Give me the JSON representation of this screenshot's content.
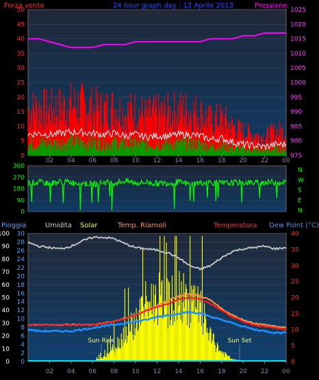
{
  "header": {
    "left_label": "Forza vento",
    "center_title": "24 hour graph day : 12 Aprile 2013",
    "right_label": "Pressione"
  },
  "panel1": {
    "left_ticks": [
      "0",
      "5",
      "10",
      "15",
      "20",
      "25",
      "30",
      "35",
      "40",
      "45",
      "50"
    ],
    "right_ticks": [
      "975",
      "980",
      "985",
      "990",
      "995",
      "1000",
      "1005",
      "1010",
      "1015",
      "1020",
      "1025"
    ]
  },
  "panel2": {
    "left_ticks": [
      "0",
      "90",
      "180",
      "270",
      "360"
    ],
    "compass": [
      "N",
      "W",
      "S",
      "E",
      "N"
    ]
  },
  "panel3": {
    "header_labels": {
      "pioggia": "Pioggia",
      "umidita": "Umidita",
      "solar": "Solar",
      "temp_riarnoli": "Temp. Riarnoli",
      "temperatura": "Temperatura",
      "dew_point": "Dew Point (°C)"
    },
    "far_left_ticks": [
      "0",
      "10",
      "20",
      "30",
      "40",
      "50",
      "60",
      "70",
      "80",
      "90",
      "100"
    ],
    "left_ticks": [
      "0",
      "2",
      "4",
      "6",
      "8",
      "10",
      "12",
      "14",
      "16",
      "18",
      "20",
      "22",
      "24",
      "26",
      "28",
      "30"
    ],
    "right_ticks": [
      "0",
      "5",
      "10",
      "15",
      "20",
      "25",
      "30",
      "35",
      "40"
    ],
    "sun_rise": "Sun Rise",
    "sun_set": "Sun Set"
  },
  "x_ticks": [
    "02",
    "04",
    "06",
    "08",
    "10",
    "12",
    "14",
    "16",
    "18",
    "20",
    "22",
    "00"
  ],
  "colors": {
    "wind_gust": "#ff0000",
    "wind_avg": "#ffffff",
    "wind_speed": "#00a000",
    "pressure": "#ff00ff",
    "direction": "#00ff00",
    "humidity": "#c0c0c0",
    "solar": "#ffff00",
    "temperature": "#ff2020",
    "temp_riarnoli": "#ff8c40",
    "dew_point": "#1e90ff"
  },
  "chart_data": [
    {
      "type": "line",
      "x": [
        0,
        1,
        2,
        3,
        4,
        5,
        6,
        7,
        8,
        9,
        10,
        11,
        12,
        13,
        14,
        15,
        16,
        17,
        18,
        19,
        20,
        21,
        22,
        23,
        24
      ],
      "series": [
        {
          "name": "Forza vento",
          "values": [
            17,
            18,
            17,
            18,
            19,
            19,
            18,
            17,
            18,
            16,
            17,
            15,
            16,
            16,
            17,
            17,
            16,
            13,
            14,
            11,
            9,
            8,
            7,
            9,
            9
          ]
        },
        {
          "name": "Pressione",
          "values": [
            1015,
            1015,
            1014,
            1013,
            1012,
            1012,
            1012,
            1013,
            1013,
            1013,
            1014,
            1014,
            1014,
            1014,
            1014,
            1014,
            1014,
            1015,
            1015,
            1015,
            1016,
            1016,
            1017,
            1017,
            1017
          ]
        }
      ],
      "ylim": [
        0,
        50
      ],
      "ylim_right": [
        975,
        1025
      ]
    },
    {
      "type": "scatter",
      "x": [
        0,
        1,
        2,
        3,
        4,
        5,
        6,
        7,
        8,
        9,
        10,
        11,
        12,
        13,
        14,
        15,
        16,
        17,
        18,
        19,
        20,
        21,
        22,
        23,
        24
      ],
      "series": [
        {
          "values": [
            225,
            230,
            220,
            235,
            230,
            225,
            215,
            230,
            225,
            240,
            225,
            230,
            220,
            225,
            230,
            215,
            225,
            230,
            220,
            225,
            230,
            225,
            230,
            230,
            230
          ]
        }
      ],
      "ylim": [
        0,
        360
      ]
    },
    {
      "type": "line",
      "x": [
        0,
        1,
        2,
        3,
        4,
        5,
        6,
        7,
        8,
        9,
        10,
        11,
        12,
        13,
        14,
        15,
        16,
        17,
        18,
        19,
        20,
        21,
        22,
        23,
        24
      ],
      "series": [
        {
          "name": "Umidita",
          "values": [
            93,
            90,
            89,
            88,
            90,
            94,
            97,
            97,
            96,
            92,
            89,
            88,
            87,
            85,
            81,
            75,
            72,
            75,
            81,
            86,
            88,
            89,
            90,
            88,
            89
          ]
        },
        {
          "name": "Solar",
          "values": [
            0,
            0,
            0,
            0,
            0,
            0,
            0,
            4,
            12,
            25,
            35,
            50,
            55,
            50,
            56,
            52,
            45,
            20,
            8,
            2,
            0,
            0,
            0,
            0,
            0
          ]
        },
        {
          "name": "Temperatura",
          "values": [
            11.5,
            11.5,
            11.5,
            11.5,
            11.5,
            11.5,
            11.5,
            12,
            12.5,
            13.5,
            14.5,
            16,
            17,
            18,
            19.5,
            20,
            19.5,
            18,
            16,
            14,
            12.5,
            11.5,
            11,
            10.5,
            10
          ]
        },
        {
          "name": "Temp. Riarnoli",
          "values": [
            11.5,
            11.5,
            11.5,
            11.5,
            11.5,
            11.5,
            11.5,
            12,
            12.5,
            13.5,
            14.5,
            16,
            17.5,
            19,
            20.5,
            21,
            20.5,
            19,
            16.5,
            14.5,
            13,
            12,
            11.5,
            11,
            10.5
          ]
        },
        {
          "name": "Dew Point",
          "values": [
            10,
            9.5,
            9.5,
            9.5,
            9.5,
            10,
            10.5,
            11,
            11.5,
            12,
            12.5,
            13,
            14,
            14.5,
            15,
            15.5,
            15,
            14,
            13,
            12,
            11,
            10,
            9.5,
            9,
            9
          ]
        }
      ],
      "ylim": [
        0,
        100
      ],
      "ylim_right": [
        0,
        40
      ]
    }
  ]
}
